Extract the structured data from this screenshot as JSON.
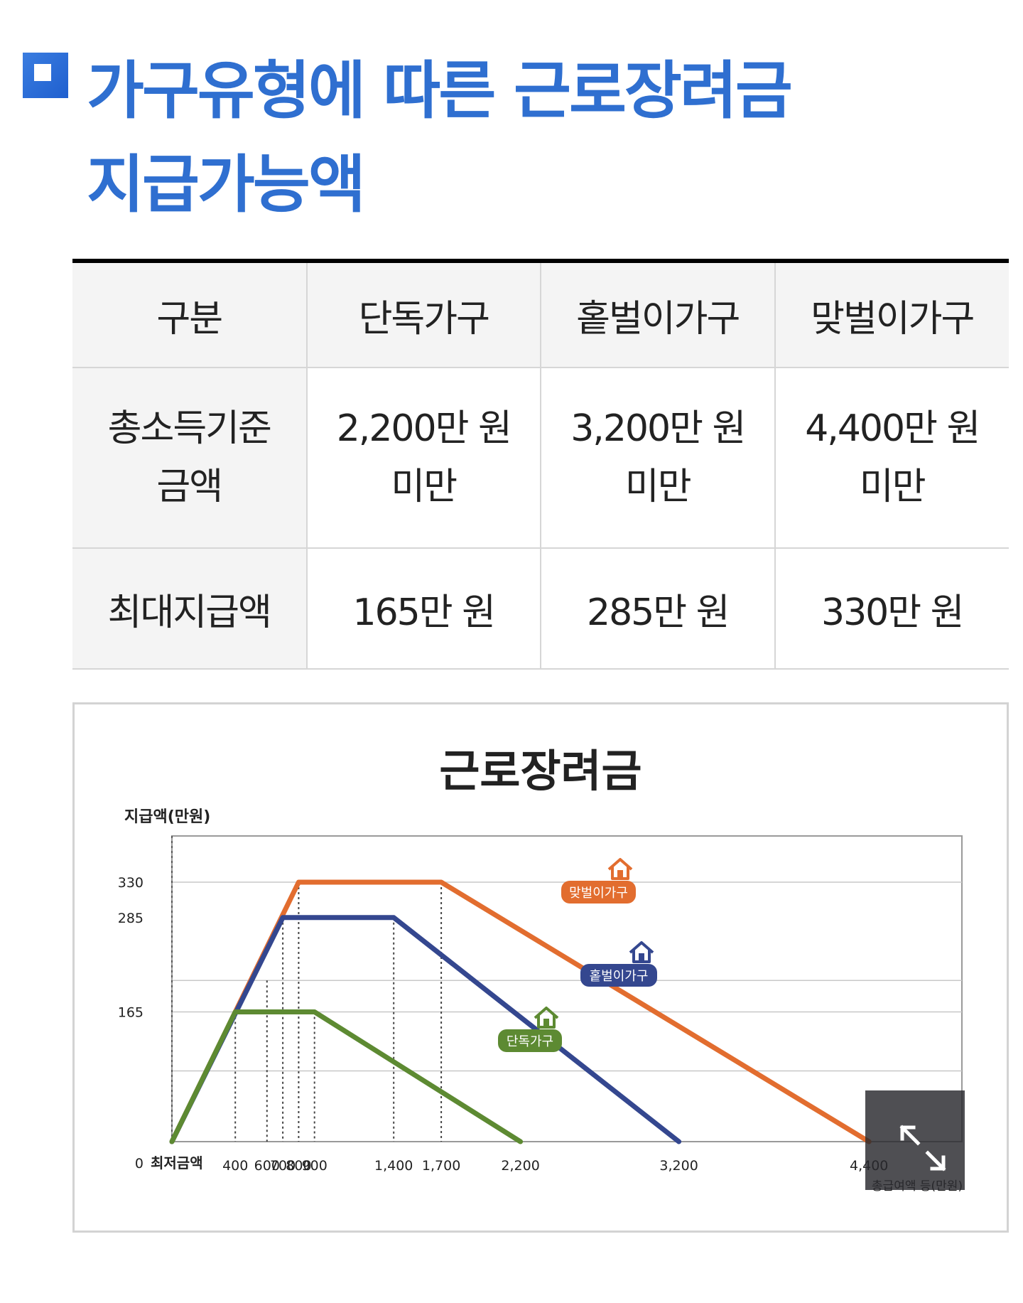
{
  "heading": {
    "line1": "가구유형에 따른 근로장려금",
    "line2": "지급가능액"
  },
  "table": {
    "headers": [
      "구분",
      "단독가구",
      "홑벌이가구",
      "맞벌이가구"
    ],
    "rows": [
      {
        "label_lines": [
          "총소득기준",
          "금액"
        ],
        "cells": [
          [
            "2,200만 원",
            "미만"
          ],
          [
            "3,200만 원",
            "미만"
          ],
          [
            "4,400만 원",
            "미만"
          ]
        ]
      },
      {
        "label": "최대지급액",
        "cells": [
          "165만 원",
          "285만 원",
          "330만 원"
        ]
      }
    ]
  },
  "chart_data": {
    "type": "line",
    "title": "근로장려금",
    "ylabel": "지급액(만원)",
    "xlabel": "총급여액 등(만원)",
    "x_origin_label": "최저금액",
    "x_ticks": [
      400,
      600,
      700,
      800,
      900,
      1400,
      1700,
      2200,
      3200,
      4400
    ],
    "x_tick_labels": [
      "400",
      "600",
      "700",
      "800",
      "900",
      "1,400",
      "1,700",
      "2,200",
      "3,200",
      "4,400"
    ],
    "y_ticks": [
      0,
      165,
      285,
      330
    ],
    "y_tick_labels": [
      "0",
      "165",
      "285",
      "330"
    ],
    "xlim": [
      0,
      4500
    ],
    "ylim": [
      0,
      330
    ],
    "grid": true,
    "series": [
      {
        "name": "맞벌이가구",
        "color": "#e26d2f",
        "x": [
          0,
          800,
          1700,
          4400
        ],
        "y": [
          0,
          330,
          330,
          0
        ]
      },
      {
        "name": "홑벌이가구",
        "color": "#34478f",
        "x": [
          0,
          700,
          1400,
          3200
        ],
        "y": [
          0,
          285,
          285,
          0
        ]
      },
      {
        "name": "단독가구",
        "color": "#5d8a32",
        "x": [
          0,
          400,
          900,
          2200
        ],
        "y": [
          0,
          165,
          165,
          0
        ]
      }
    ]
  },
  "zoom_button": {
    "icon": "expand-icon"
  }
}
